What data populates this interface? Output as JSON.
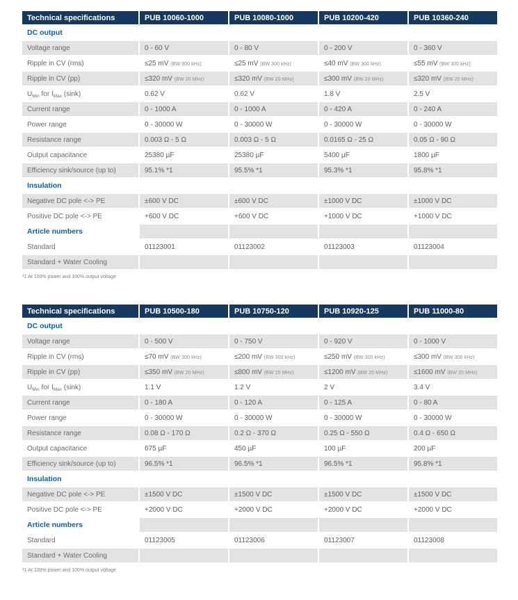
{
  "colors": {
    "header_bg": "#16395f",
    "header_text": "#ffffff",
    "section_text": "#0c61a7",
    "stripe": "#e3e3e3",
    "label_text": "#6b6b6b",
    "value_text": "#5f5f5f",
    "note_text": "#8a8a8a",
    "footnote_text": "#808080"
  },
  "tables": [
    {
      "header": [
        "Technical specifications",
        "PUB 10060-1000",
        "PUB 10080-1000",
        "PUB 10200-420",
        "PUB 10360-240"
      ],
      "rows": [
        {
          "type": "section",
          "label": "DC output",
          "values": [
            "",
            "",
            "",
            ""
          ]
        },
        {
          "type": "data",
          "label": "Voltage range",
          "values": [
            "0 - 60 V",
            "0 - 80 V",
            "0 - 200 V",
            "0 - 360 V"
          ]
        },
        {
          "type": "data",
          "label": "Ripple in CV (rms)",
          "values": [
            "≤25 mV (BW 300 kHz)",
            "≤25 mV (BW 300 kHz)",
            "≤40 mV (BW 300 kHz)",
            "≤55 mV (BW 300 kHz)"
          ]
        },
        {
          "type": "data",
          "label": "Ripple in CV (pp)",
          "values": [
            "≤320 mV (BW 20 MHz)",
            "≤320 mV (BW 20 MHz)",
            "≤300 mV (BW 20 MHz)",
            "≤320 mV (BW 20 MHz)"
          ]
        },
        {
          "type": "data",
          "label": "U{Min} for I{Max} (sink)",
          "values": [
            "0.62 V",
            "0.62 V",
            "1.8 V",
            "2.5 V"
          ]
        },
        {
          "type": "data",
          "label": "Current range",
          "values": [
            "0 - 1000 A",
            "0 - 1000 A",
            "0 - 420 A",
            "0 - 240 A"
          ]
        },
        {
          "type": "data",
          "label": "Power range",
          "values": [
            "0 - 30000 W",
            "0 - 30000 W",
            "0 - 30000 W",
            "0 - 30000 W"
          ]
        },
        {
          "type": "data",
          "label": "Resistance range",
          "values": [
            "0.003 Ω - 5 Ω",
            "0.003 Ω - 5 Ω",
            "0.0165 Ω - 25 Ω",
            "0.05 Ω - 90 Ω"
          ]
        },
        {
          "type": "data",
          "label": "Output capacitance",
          "values": [
            "25380 µF",
            "25380 µF",
            "5400 µF",
            "1800 µF"
          ]
        },
        {
          "type": "data",
          "label": "Efficiency sink/source (up to)",
          "values": [
            "95.1% *1",
            "95.5% *1",
            "95.3% *1",
            "95.8% *1"
          ]
        },
        {
          "type": "section",
          "label": "Insulation",
          "values": [
            "",
            "",
            "",
            ""
          ]
        },
        {
          "type": "data",
          "label": "Negative DC pole <-> PE",
          "values": [
            "±600 V DC",
            "±600 V DC",
            "±1000 V DC",
            "±1000 V DC"
          ]
        },
        {
          "type": "data",
          "label": "Positive DC pole <-> PE",
          "values": [
            "+600 V DC",
            "+600 V DC",
            "+1000 V DC",
            "+1000 V DC"
          ]
        },
        {
          "type": "section",
          "label": "Article numbers",
          "values": [
            "",
            "",
            "",
            ""
          ]
        },
        {
          "type": "data",
          "label": "Standard",
          "values": [
            "01123001",
            "01123002",
            "01123003",
            "01123004"
          ]
        },
        {
          "type": "data",
          "label": "Standard + Water Cooling",
          "values": [
            "",
            "",
            "",
            ""
          ]
        }
      ],
      "footnote": "*1 At 100% power and 100% output voltage"
    },
    {
      "header": [
        "Technical specifications",
        "PUB 10500-180",
        "PUB 10750-120",
        "PUB 10920-125",
        "PUB 11000-80"
      ],
      "rows": [
        {
          "type": "section",
          "label": "DC output",
          "values": [
            "",
            "",
            "",
            ""
          ]
        },
        {
          "type": "data",
          "label": "Voltage range",
          "values": [
            "0 - 500 V",
            "0 - 750 V",
            "0 - 920 V",
            "0 - 1000 V"
          ]
        },
        {
          "type": "data",
          "label": "Ripple in CV (rms)",
          "values": [
            "≤70 mV (BW 300 kHz)",
            "≤200 mV (BW 300 kHz)",
            "≤250 mV (BW 300 kHz)",
            "≤300 mV (BW 300 kHz)"
          ]
        },
        {
          "type": "data",
          "label": "Ripple in CV (pp)",
          "values": [
            "≤350 mV (BW 20 MHz)",
            "≤800 mV (BW 20 MHz)",
            "≤1200 mV (BW 20 MHz)",
            "≤1600 mV (BW 20 MHz)"
          ]
        },
        {
          "type": "data",
          "label": "U{Min} for I{Max} (sink)",
          "values": [
            "1.1 V",
            "1.2 V",
            "2 V",
            "3.4 V"
          ]
        },
        {
          "type": "data",
          "label": "Current range",
          "values": [
            "0 - 180 A",
            "0 - 120 A",
            "0 - 125 A",
            "0 - 80 A"
          ]
        },
        {
          "type": "data",
          "label": "Power range",
          "values": [
            "0 - 30000 W",
            "0 - 30000 W",
            "0 - 30000 W",
            "0 - 30000 W"
          ]
        },
        {
          "type": "data",
          "label": "Resistance range",
          "values": [
            "0.08 Ω - 170 Ω",
            "0.2 Ω - 370 Ω",
            "0.25 Ω - 550 Ω",
            "0.4 Ω - 650 Ω"
          ]
        },
        {
          "type": "data",
          "label": "Output capacitance",
          "values": [
            "675 µF",
            "450 µF",
            "100 µF",
            "200 µF"
          ]
        },
        {
          "type": "data",
          "label": "Efficiency sink/source (up to)",
          "values": [
            "96.5% *1",
            "96.5% *1",
            "96.5% *1",
            "95.8% *1"
          ]
        },
        {
          "type": "section",
          "label": "Insulation",
          "values": [
            "",
            "",
            "",
            ""
          ]
        },
        {
          "type": "data",
          "label": "Negative DC pole <-> PE",
          "values": [
            "±1500 V DC",
            "±1500 V DC",
            "±1500 V DC",
            "±1500 V DC"
          ]
        },
        {
          "type": "data",
          "label": "Positive DC pole <-> PE",
          "values": [
            "+2000 V DC",
            "+2000 V DC",
            "+2000 V DC",
            "+2000 V DC"
          ]
        },
        {
          "type": "section",
          "label": "Article numbers",
          "values": [
            "",
            "",
            "",
            ""
          ]
        },
        {
          "type": "data",
          "label": "Standard",
          "values": [
            "01123005",
            "01123006",
            "01123007",
            "01123008"
          ]
        },
        {
          "type": "data",
          "label": "Standard + Water Cooling",
          "values": [
            "",
            "",
            "",
            ""
          ]
        }
      ],
      "footnote": "*1 At 100% power and 100% output voltage"
    }
  ]
}
